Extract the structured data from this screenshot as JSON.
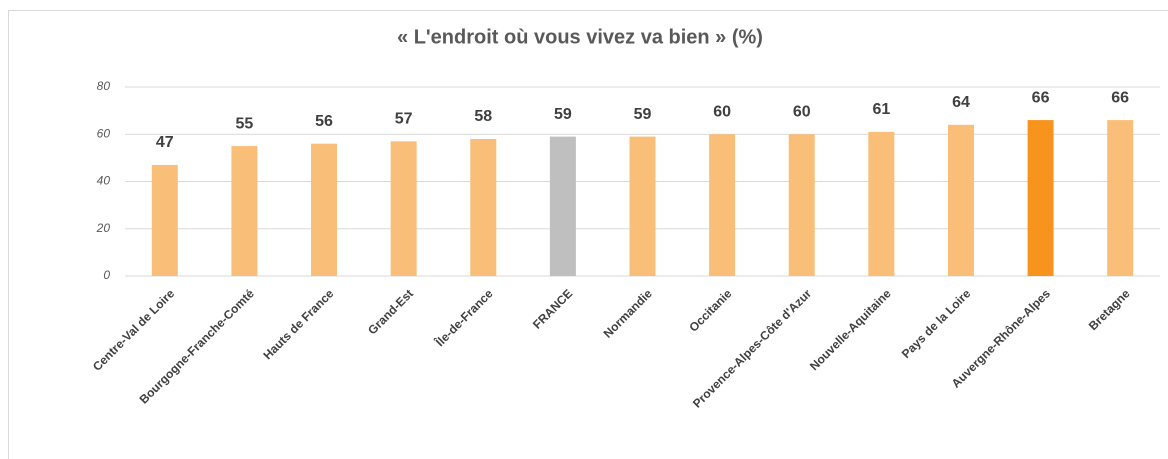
{
  "chart_data": {
    "type": "bar",
    "title": "« L'endroit où vous vivez va bien » (%)",
    "categories": [
      "Centre-Val de Loire",
      "Bourgogne-Franche-Comté",
      "Hauts de France",
      "Grand-Est",
      "Île-de-France",
      "FRANCE",
      "Normandie",
      "Occitanie",
      "Provence-Alpes-Côte d'Azur",
      "Nouvelle-Aquitaine",
      "Pays de la Loire",
      "Auvergne-Rhône-Alpes",
      "Bretagne"
    ],
    "values": [
      47,
      55,
      56,
      57,
      58,
      59,
      59,
      60,
      60,
      61,
      64,
      66,
      66
    ],
    "colors": [
      "#F9BF78",
      "#F9BF78",
      "#F9BF78",
      "#F9BF78",
      "#F9BF78",
      "#BFBFBF",
      "#F9BF78",
      "#F9BF78",
      "#F9BF78",
      "#F9BF78",
      "#F9BF78",
      "#F7941D",
      "#F9BF78"
    ],
    "ylim": [
      0,
      80
    ],
    "yticks": [
      0,
      20,
      40,
      60,
      80
    ],
    "grid": true
  }
}
